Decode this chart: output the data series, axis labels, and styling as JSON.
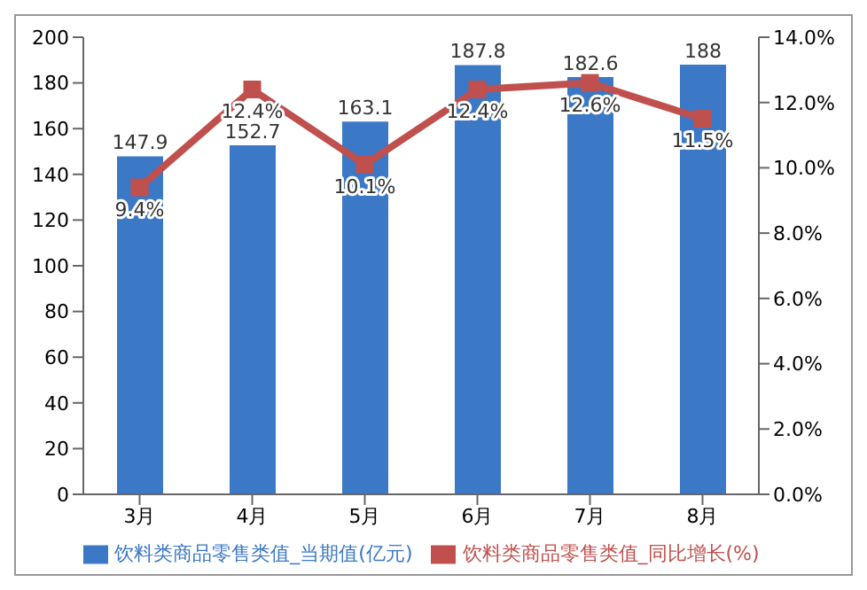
{
  "chart_data": {
    "type": "bar",
    "categories": [
      "3月",
      "4月",
      "5月",
      "6月",
      "7月",
      "8月"
    ],
    "series": [
      {
        "name": "饮料类商品零售类值_当期值(亿元)",
        "color": "#3b78c6",
        "values": [
          147.9,
          152.7,
          163.1,
          187.8,
          182.6,
          188
        ],
        "value_labels": [
          "147.9",
          "152.7",
          "163.1",
          "187.8",
          "182.6",
          "188"
        ]
      },
      {
        "name": "饮料类商品零售类值_同比增长(%)",
        "type": "line",
        "axis": "y2",
        "color": "#c0504d",
        "values": [
          9.4,
          12.4,
          10.1,
          12.4,
          12.6,
          11.5
        ],
        "value_labels": [
          "9.4%",
          "12.4%",
          "10.1%",
          "12.4%",
          "12.6%",
          "11.5%"
        ]
      }
    ],
    "ylim": [
      0,
      200
    ],
    "yticks": [
      0,
      20,
      40,
      60,
      80,
      100,
      120,
      140,
      160,
      180,
      200
    ],
    "y2lim": [
      0,
      14
    ],
    "y2ticks": [
      {
        "value": 0,
        "label": "0.0%"
      },
      {
        "value": 2,
        "label": "2.0%"
      },
      {
        "value": 4,
        "label": "4.0%"
      },
      {
        "value": 6,
        "label": "6.0%"
      },
      {
        "value": 8,
        "label": "8.0%"
      },
      {
        "value": 10,
        "label": "10.0%"
      },
      {
        "value": 12,
        "label": "12.0%"
      },
      {
        "value": 14,
        "label": "14.0%"
      }
    ],
    "grid": false,
    "legend": "bottom",
    "marker": "square"
  }
}
